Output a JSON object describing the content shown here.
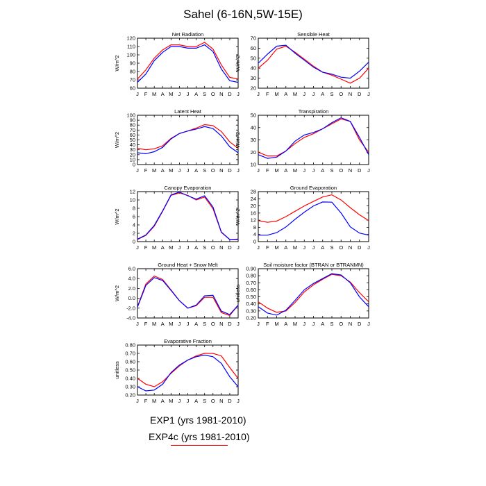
{
  "title": "Sahel (6-16N,5W-15E)",
  "months": [
    "J",
    "F",
    "M",
    "A",
    "M",
    "J",
    "J",
    "A",
    "S",
    "O",
    "N",
    "D",
    "J"
  ],
  "colors": {
    "exp1": "#0000ff",
    "exp4c": "#ff0000"
  },
  "legend": {
    "exp1_label": "EXP1 (yrs 1981-2010)",
    "exp4c_label": "EXP4c (yrs 1981-2010)"
  },
  "chart_data": [
    {
      "type": "line",
      "title": "Net Radiation",
      "ylabel": "W/m^2",
      "ylim": [
        60,
        120
      ],
      "yticks": [
        "60",
        "70",
        "80",
        "90",
        "100",
        "110",
        "120"
      ],
      "x": [
        "J",
        "F",
        "M",
        "A",
        "M",
        "J",
        "J",
        "A",
        "S",
        "O",
        "N",
        "D",
        "J"
      ],
      "series": [
        {
          "name": "EXP1",
          "color": "#0000ff",
          "values": [
            67,
            77,
            93,
            103,
            110,
            110,
            108,
            108,
            112,
            104,
            83,
            69,
            67
          ]
        },
        {
          "name": "EXP4c",
          "color": "#ff0000",
          "values": [
            71,
            82,
            96,
            106,
            112,
            112,
            110,
            110,
            115,
            107,
            88,
            73,
            71
          ]
        }
      ]
    },
    {
      "type": "line",
      "title": "Sensible Heat",
      "ylabel": "W/m^2",
      "ylim": [
        20,
        70
      ],
      "yticks": [
        "20",
        "30",
        "40",
        "50",
        "60",
        "70"
      ],
      "x": [
        "J",
        "F",
        "M",
        "A",
        "M",
        "J",
        "J",
        "A",
        "S",
        "O",
        "N",
        "D",
        "J"
      ],
      "series": [
        {
          "name": "EXP1",
          "color": "#0000ff",
          "values": [
            45,
            54,
            62,
            63,
            55,
            48,
            41,
            36,
            34,
            31,
            30,
            37,
            46
          ]
        },
        {
          "name": "EXP4c",
          "color": "#ff0000",
          "values": [
            40,
            48,
            59,
            62,
            56,
            49,
            42,
            36,
            33,
            29,
            25,
            30,
            40
          ]
        }
      ]
    },
    {
      "type": "line",
      "title": "Latent Heat",
      "ylabel": "W/m^2",
      "ylim": [
        0,
        100
      ],
      "yticks": [
        "0",
        "10",
        "20",
        "30",
        "40",
        "50",
        "60",
        "70",
        "80",
        "90",
        "100"
      ],
      "x": [
        "J",
        "F",
        "M",
        "A",
        "M",
        "J",
        "J",
        "A",
        "S",
        "O",
        "N",
        "D",
        "J"
      ],
      "series": [
        {
          "name": "EXP1",
          "color": "#0000ff",
          "values": [
            24,
            22,
            26,
            35,
            52,
            63,
            68,
            72,
            77,
            73,
            58,
            36,
            24
          ]
        },
        {
          "name": "EXP4c",
          "color": "#ff0000",
          "values": [
            33,
            30,
            32,
            38,
            53,
            63,
            68,
            74,
            81,
            79,
            67,
            46,
            33
          ]
        }
      ]
    },
    {
      "type": "line",
      "title": "Transpiration",
      "ylabel": "W/m^2",
      "ylim": [
        10,
        50
      ],
      "yticks": [
        "10",
        "20",
        "30",
        "40",
        "50"
      ],
      "x": [
        "J",
        "F",
        "M",
        "A",
        "M",
        "J",
        "J",
        "A",
        "S",
        "O",
        "N",
        "D",
        "J"
      ],
      "series": [
        {
          "name": "EXP1",
          "color": "#0000ff",
          "values": [
            18,
            15,
            16,
            21,
            29,
            34,
            36,
            39,
            44,
            48,
            45,
            32,
            18
          ]
        },
        {
          "name": "EXP4c",
          "color": "#ff0000",
          "values": [
            20,
            17,
            17,
            21,
            27,
            32,
            35,
            39,
            43,
            47,
            45,
            30,
            20
          ]
        }
      ]
    },
    {
      "type": "line",
      "title": "Canopy Evaporation",
      "ylabel": "W/m^2",
      "ylim": [
        0,
        12
      ],
      "yticks": [
        "0",
        "2",
        "4",
        "6",
        "8",
        "10",
        "12"
      ],
      "x": [
        "J",
        "F",
        "M",
        "A",
        "M",
        "J",
        "J",
        "A",
        "S",
        "O",
        "N",
        "D",
        "J"
      ],
      "series": [
        {
          "name": "EXP1",
          "color": "#0000ff",
          "values": [
            0.6,
            1.6,
            3.9,
            7.4,
            11.2,
            11.9,
            11.0,
            10.2,
            11.0,
            8.3,
            2.3,
            0.5,
            0.6
          ]
        },
        {
          "name": "EXP4c",
          "color": "#ff0000",
          "values": [
            0.5,
            1.5,
            3.7,
            7.3,
            11.1,
            11.7,
            11.1,
            10.0,
            10.7,
            7.9,
            2.2,
            0.5,
            0.5
          ]
        }
      ]
    },
    {
      "type": "line",
      "title": "Ground Evaporation",
      "ylabel": "W/m^2",
      "ylim": [
        0,
        28
      ],
      "yticks": [
        "0",
        "4",
        "8",
        "12",
        "16",
        "20",
        "24",
        "28"
      ],
      "x": [
        "J",
        "F",
        "M",
        "A",
        "M",
        "J",
        "J",
        "A",
        "S",
        "O",
        "N",
        "D",
        "J"
      ],
      "series": [
        {
          "name": "EXP1",
          "color": "#0000ff",
          "values": [
            3.6,
            3.6,
            5.0,
            8.2,
            12.5,
            16.5,
            20.0,
            22.2,
            22.1,
            16.0,
            8.3,
            4.8,
            3.6
          ]
        },
        {
          "name": "EXP4c",
          "color": "#ff0000",
          "values": [
            11.8,
            10.8,
            11.5,
            14.0,
            17.0,
            20.0,
            22.5,
            25.0,
            26.2,
            23.3,
            19.0,
            15.0,
            11.8
          ]
        }
      ]
    },
    {
      "type": "line",
      "title": "Ground Heat + Snow Melt",
      "ylabel": "W/m^2",
      "ylim": [
        -4,
        6
      ],
      "yticks": [
        "-4.0",
        "-2.0",
        "0.0",
        "2.0",
        "4.0",
        "6.0"
      ],
      "x": [
        "J",
        "F",
        "M",
        "A",
        "M",
        "J",
        "J",
        "A",
        "S",
        "O",
        "N",
        "D",
        "J"
      ],
      "series": [
        {
          "name": "EXP1",
          "color": "#0000ff",
          "values": [
            -1.8,
            2.6,
            4.2,
            3.6,
            1.6,
            -0.5,
            -2.0,
            -1.4,
            0.5,
            0.6,
            -2.6,
            -3.3,
            -1.4
          ]
        },
        {
          "name": "EXP4c",
          "color": "#ff0000",
          "values": [
            -1.7,
            2.9,
            4.5,
            3.8,
            1.7,
            -0.5,
            -2.0,
            -1.5,
            0.2,
            0.2,
            -2.9,
            -3.5,
            -1.4
          ]
        }
      ]
    },
    {
      "type": "line",
      "title": "Soil moisture factor (BTRAN or BTRANMN)",
      "ylabel": "unitless",
      "ylim": [
        0.2,
        0.9
      ],
      "yticks": [
        "0.20",
        "0.30",
        "0.40",
        "0.50",
        "0.60",
        "0.70",
        "0.80",
        "0.90"
      ],
      "x": [
        "J",
        "F",
        "M",
        "A",
        "M",
        "J",
        "J",
        "A",
        "S",
        "O",
        "N",
        "D",
        "J"
      ],
      "series": [
        {
          "name": "EXP1",
          "color": "#0000ff",
          "values": [
            0.36,
            0.27,
            0.24,
            0.31,
            0.45,
            0.6,
            0.69,
            0.76,
            0.83,
            0.81,
            0.7,
            0.5,
            0.36
          ]
        },
        {
          "name": "EXP4c",
          "color": "#ff0000",
          "values": [
            0.43,
            0.34,
            0.28,
            0.3,
            0.42,
            0.57,
            0.67,
            0.75,
            0.82,
            0.8,
            0.71,
            0.56,
            0.43
          ]
        }
      ]
    },
    {
      "type": "line",
      "title": "Evaporative Fraction",
      "ylabel": "unitless",
      "ylim": [
        0.2,
        0.8
      ],
      "yticks": [
        "0.20",
        "0.30",
        "0.40",
        "0.50",
        "0.60",
        "0.70",
        "0.80"
      ],
      "x": [
        "J",
        "F",
        "M",
        "A",
        "M",
        "J",
        "J",
        "A",
        "S",
        "O",
        "N",
        "D",
        "J"
      ],
      "series": [
        {
          "name": "EXP1",
          "color": "#0000ff",
          "values": [
            0.3,
            0.25,
            0.26,
            0.33,
            0.47,
            0.56,
            0.62,
            0.66,
            0.68,
            0.66,
            0.58,
            0.42,
            0.3
          ]
        },
        {
          "name": "EXP4c",
          "color": "#ff0000",
          "values": [
            0.4,
            0.33,
            0.3,
            0.36,
            0.46,
            0.55,
            0.62,
            0.67,
            0.7,
            0.7,
            0.67,
            0.53,
            0.4
          ]
        }
      ]
    }
  ]
}
